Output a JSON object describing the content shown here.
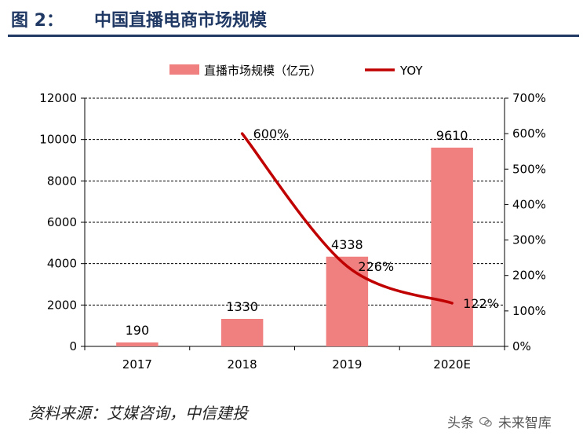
{
  "figure": {
    "label": "图 2：",
    "title": "中国直播电商市场规模"
  },
  "chart_data": {
    "type": "bar+line",
    "categories": [
      "2017",
      "2018",
      "2019",
      "2020E"
    ],
    "series": [
      {
        "name": "直播市场规模（亿元）",
        "type": "bar",
        "axis": "left",
        "values": [
          190,
          1330,
          4338,
          9610
        ],
        "labels": [
          "190",
          "1330",
          "4338",
          "9610"
        ]
      },
      {
        "name": "YOY",
        "type": "line",
        "axis": "right",
        "values": [
          null,
          600,
          226,
          122
        ],
        "labels": [
          "",
          "600%",
          "226%",
          "122%"
        ]
      }
    ],
    "y_left": {
      "range": [
        0,
        12000
      ],
      "ticks": [
        "0",
        "2000",
        "4000",
        "6000",
        "8000",
        "10000",
        "12000"
      ]
    },
    "y_right": {
      "range": [
        0,
        700
      ],
      "ticks": [
        "0%",
        "100%",
        "200%",
        "300%",
        "400%",
        "500%",
        "600%",
        "700%"
      ]
    },
    "grid": true,
    "legend_position": "top",
    "colors": {
      "bar": "#f08080",
      "line": "#c00000",
      "grid": "#000000"
    }
  },
  "source": "资料来源：艾媒咨询，中信建投",
  "watermark": {
    "prefix": "头条",
    "name": "未来智库",
    "icon": "wechat-icon"
  }
}
